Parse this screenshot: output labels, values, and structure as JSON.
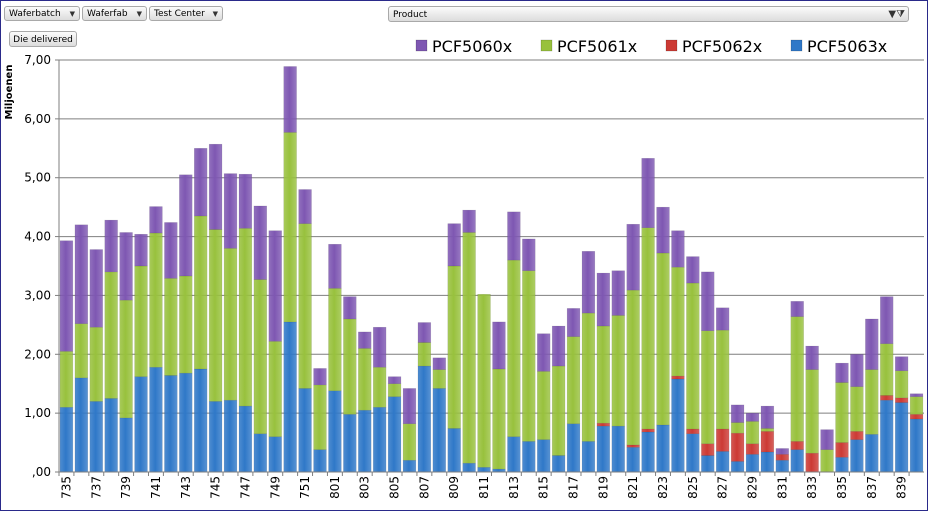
{
  "filters": {
    "waferbatch": "Waferbatch",
    "waferfab": "Waferfab",
    "test_center": "Test Center",
    "die_delivered": "Die delivered",
    "product": "Product"
  },
  "colors": {
    "PCF5060x": "#7e57b2",
    "PCF5061x": "#98c13d",
    "PCF5062x": "#cc3a34",
    "PCF5063x": "#2f78c8"
  },
  "chart_data": {
    "type": "bar",
    "stacked": true,
    "title": "",
    "xlabel": "",
    "ylabel": "Miljoenen",
    "ylim": [
      0,
      7
    ],
    "ytick_labels": [
      ",00",
      "1,00",
      "2,00",
      "3,00",
      "4,00",
      "5,00",
      "6,00",
      "7,00"
    ],
    "categories": [
      "735",
      "736",
      "737",
      "738",
      "739",
      "740",
      "741",
      "742",
      "743",
      "744",
      "745",
      "746",
      "747",
      "748",
      "749",
      "750",
      "751",
      "752",
      "801",
      "802",
      "803",
      "804",
      "805",
      "806",
      "807",
      "808",
      "809",
      "810",
      "811",
      "812",
      "813",
      "814",
      "815",
      "816",
      "817",
      "818",
      "819",
      "820",
      "821",
      "822",
      "823",
      "824",
      "825",
      "826",
      "827",
      "828",
      "829",
      "830",
      "831",
      "832",
      "833",
      "834",
      "835",
      "836",
      "837",
      "838",
      "839",
      "840"
    ],
    "xtick_labels": [
      "735",
      "737",
      "739",
      "741",
      "743",
      "745",
      "747",
      "749",
      "751",
      "801",
      "803",
      "805",
      "807",
      "809",
      "811",
      "813",
      "815",
      "817",
      "819",
      "821",
      "823",
      "825",
      "827",
      "829",
      "831",
      "833",
      "835",
      "837",
      "839"
    ],
    "series": [
      {
        "name": "PCF5063x",
        "values": [
          1.1,
          1.6,
          1.2,
          1.25,
          0.92,
          1.62,
          1.78,
          1.64,
          1.68,
          1.75,
          1.2,
          1.22,
          1.12,
          0.65,
          0.6,
          2.55,
          1.42,
          0.38,
          1.38,
          0.98,
          1.05,
          1.1,
          1.28,
          0.2,
          1.8,
          1.42,
          0.74,
          0.15,
          0.08,
          0.05,
          0.6,
          0.52,
          0.55,
          0.28,
          0.82,
          0.52,
          0.78,
          0.78,
          0.42,
          0.68,
          0.8,
          1.58,
          0.65,
          0.28,
          0.35,
          0.18,
          0.3,
          0.34,
          0.2,
          0.38,
          0.0,
          0.0,
          0.25,
          0.55,
          0.64,
          1.22,
          1.18,
          0.9
        ]
      },
      {
        "name": "PCF5062x",
        "values": [
          0.0,
          0.0,
          0.0,
          0.0,
          0.0,
          0.0,
          0.0,
          0.0,
          0.0,
          0.0,
          0.0,
          0.0,
          0.0,
          0.0,
          0.0,
          0.0,
          0.0,
          0.0,
          0.0,
          0.0,
          0.0,
          0.0,
          0.0,
          0.0,
          0.0,
          0.0,
          0.0,
          0.0,
          0.0,
          0.0,
          0.0,
          0.0,
          0.0,
          0.0,
          0.0,
          0.0,
          0.05,
          0.0,
          0.04,
          0.05,
          0.0,
          0.05,
          0.08,
          0.2,
          0.38,
          0.48,
          0.18,
          0.35,
          0.1,
          0.14,
          0.32,
          0.0,
          0.25,
          0.14,
          0.0,
          0.08,
          0.08,
          0.08
        ]
      },
      {
        "name": "PCF5061x",
        "values": [
          0.95,
          0.92,
          1.26,
          2.15,
          2.0,
          1.88,
          2.28,
          1.65,
          1.65,
          2.6,
          2.92,
          2.58,
          3.02,
          2.62,
          1.62,
          3.22,
          2.8,
          1.1,
          1.74,
          1.62,
          1.05,
          0.68,
          0.22,
          0.62,
          0.4,
          0.32,
          2.76,
          3.92,
          2.94,
          1.7,
          3.0,
          2.9,
          1.16,
          1.52,
          1.48,
          2.18,
          1.65,
          1.88,
          2.63,
          3.42,
          2.92,
          1.85,
          2.48,
          1.92,
          1.68,
          0.18,
          0.38,
          0.05,
          0.0,
          2.12,
          1.42,
          0.38,
          1.02,
          0.76,
          1.1,
          0.88,
          0.46,
          0.3
        ]
      },
      {
        "name": "PCF5060x",
        "values": [
          1.88,
          1.68,
          1.32,
          0.88,
          1.15,
          0.54,
          0.45,
          0.95,
          1.72,
          1.15,
          1.45,
          1.27,
          0.92,
          1.25,
          1.88,
          1.12,
          0.58,
          0.28,
          0.75,
          0.38,
          0.28,
          0.68,
          0.12,
          0.6,
          0.34,
          0.2,
          0.72,
          0.38,
          0.0,
          0.8,
          0.82,
          0.54,
          0.64,
          0.68,
          0.48,
          1.05,
          0.9,
          0.76,
          1.12,
          1.18,
          0.78,
          0.62,
          0.45,
          1.0,
          0.38,
          0.3,
          0.14,
          0.38,
          0.1,
          0.26,
          0.4,
          0.34,
          0.33,
          0.55,
          0.86,
          0.8,
          0.24,
          0.05
        ]
      }
    ],
    "legend": [
      "PCF5060x",
      "PCF5061x",
      "PCF5062x",
      "PCF5063x"
    ],
    "legend_position": "top-right",
    "grid": true
  }
}
